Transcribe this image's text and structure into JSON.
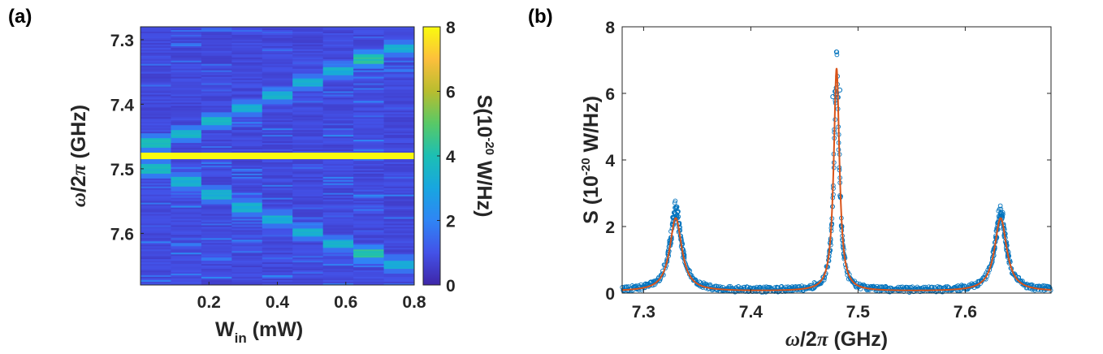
{
  "panels": {
    "a_label": "(a)",
    "b_label": "(b)"
  },
  "chart_data": [
    {
      "type": "heatmap",
      "panel": "(a)",
      "xlabel": "W_in (mW)",
      "xlabel_parts": {
        "main": "W",
        "sub": "in",
        "unit": " (mW)"
      },
      "ylabel": "ω/2π (GHz)",
      "ylabel_parts": {
        "sym": "ω",
        "mid": "/2",
        "pi": "π",
        "unit": " (GHz)"
      },
      "x_ticks": [
        "0.2",
        "0.4",
        "0.6",
        "0.8"
      ],
      "x_tick_values": [
        0.2,
        0.4,
        0.6,
        0.8
      ],
      "y_ticks": [
        "7.3",
        "7.4",
        "7.5",
        "7.6"
      ],
      "y_tick_values": [
        7.3,
        7.4,
        7.5,
        7.6
      ],
      "xlim": [
        0.0,
        0.8
      ],
      "ylim": [
        7.28,
        7.68
      ],
      "y_reversed": true,
      "colorbar": {
        "label": "S(10^-20 W/Hz)",
        "label_parts": {
          "pre": "S(10",
          "sup": "-20",
          "post": " W/Hz)"
        },
        "ticks": [
          "0",
          "2",
          "4",
          "6",
          "8"
        ],
        "tick_values": [
          0,
          2,
          4,
          6,
          8
        ],
        "range": [
          0,
          8
        ],
        "colormap": "parula"
      },
      "columns": [
        {
          "W": 0.0,
          "peaks": [
            {
              "f": 7.48,
              "S": 8.0
            },
            {
              "f": 7.46,
              "S": 4.0
            },
            {
              "f": 7.5,
              "S": 4.0
            }
          ]
        },
        {
          "W": 0.1,
          "peaks": [
            {
              "f": 7.48,
              "S": 8.0
            },
            {
              "f": 7.446,
              "S": 4.0
            },
            {
              "f": 7.52,
              "S": 3.6
            }
          ]
        },
        {
          "W": 0.2,
          "peaks": [
            {
              "f": 7.48,
              "S": 8.0
            },
            {
              "f": 7.426,
              "S": 4.0
            },
            {
              "f": 7.54,
              "S": 3.6
            }
          ]
        },
        {
          "W": 0.3,
          "peaks": [
            {
              "f": 7.48,
              "S": 8.0
            },
            {
              "f": 7.406,
              "S": 3.6
            },
            {
              "f": 7.56,
              "S": 3.6
            }
          ]
        },
        {
          "W": 0.4,
          "peaks": [
            {
              "f": 7.48,
              "S": 8.0
            },
            {
              "f": 7.386,
              "S": 3.6
            },
            {
              "f": 7.578,
              "S": 3.6
            }
          ]
        },
        {
          "W": 0.5,
          "peaks": [
            {
              "f": 7.48,
              "S": 8.0
            },
            {
              "f": 7.366,
              "S": 3.6
            },
            {
              "f": 7.598,
              "S": 3.6
            }
          ]
        },
        {
          "W": 0.6,
          "peaks": [
            {
              "f": 7.48,
              "S": 8.0
            },
            {
              "f": 7.348,
              "S": 3.6
            },
            {
              "f": 7.616,
              "S": 3.6
            }
          ]
        },
        {
          "W": 0.7,
          "peaks": [
            {
              "f": 7.48,
              "S": 8.0
            },
            {
              "f": 7.33,
              "S": 4.4
            },
            {
              "f": 7.632,
              "S": 4.4
            }
          ]
        },
        {
          "W": 0.8,
          "peaks": [
            {
              "f": 7.48,
              "S": 8.0
            },
            {
              "f": 7.314,
              "S": 3.6
            },
            {
              "f": 7.648,
              "S": 3.6
            }
          ]
        }
      ]
    },
    {
      "type": "scatter",
      "panel": "(b)",
      "xlabel": "ω/2π (GHz)",
      "xlabel_parts": {
        "sym": "ω",
        "mid": "/2",
        "pi": "π",
        "unit": " (GHz)"
      },
      "ylabel": "S (10^-20 W/Hz)",
      "ylabel_parts": {
        "pre": "S (10",
        "sup": "-20",
        "post": " W/Hz)"
      },
      "x_ticks": [
        "7.3",
        "7.4",
        "7.5",
        "7.6"
      ],
      "x_tick_values": [
        7.3,
        7.4,
        7.5,
        7.6
      ],
      "y_ticks": [
        "0",
        "2",
        "4",
        "6",
        "8"
      ],
      "y_tick_values": [
        0,
        2,
        4,
        6,
        8
      ],
      "xlim": [
        7.28,
        7.68
      ],
      "ylim": [
        0,
        8
      ],
      "series": [
        {
          "kind": "scatter",
          "color": "#0072bd",
          "marker": "circle-open",
          "peaks": [
            {
              "f0": 7.33,
              "amp": 2.4,
              "hw": 0.0065
            },
            {
              "f0": 7.48,
              "amp": 6.6,
              "hw": 0.003
            },
            {
              "f0": 7.633,
              "amp": 2.3,
              "hw": 0.0065
            }
          ],
          "baseline": 0.08,
          "highlights": [
            {
              "x": 7.4765,
              "y": 5.9
            },
            {
              "x": 7.483,
              "y": 6.1
            },
            {
              "x": 7.3298,
              "y": 2.55
            }
          ]
        },
        {
          "kind": "line",
          "color": "#d95319",
          "peaks": [
            {
              "f0": 7.33,
              "amp": 2.2,
              "hw": 0.0068
            },
            {
              "f0": 7.48,
              "amp": 6.7,
              "hw": 0.0032
            },
            {
              "f0": 7.633,
              "amp": 2.2,
              "hw": 0.0068
            }
          ],
          "baseline": 0.05
        }
      ]
    }
  ]
}
